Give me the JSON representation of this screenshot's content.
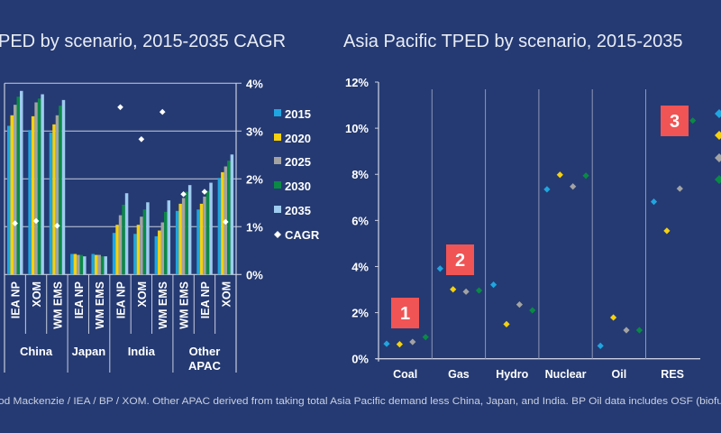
{
  "colors": {
    "background": "#253a72",
    "2015": "#1fa6e0",
    "2020": "#f5d10f",
    "2025": "#a3a3a3",
    "2030": "#0a8a45",
    "2035": "#9ecbef",
    "cagr": "#ffffff",
    "callout": "#f05454",
    "grid": "#c8cde0"
  },
  "footer": "od Mackenzie / IEA / BP / XOM. Other APAC derived from taking total Asia Pacific demand less China, Japan, and India. BP Oil data includes OSF (biofu",
  "chart_data": [
    {
      "type": "bar",
      "title": "PED by scenario, 2015-2035 CAGR",
      "y2_ticks": [
        "0%",
        "1%",
        "2%",
        "3%",
        "4%"
      ],
      "y2lim": [
        0,
        4
      ],
      "grid": true,
      "legend_placement": "right",
      "legend": [
        "2015",
        "2020",
        "2025",
        "2030",
        "2035",
        "CAGR"
      ],
      "groups": [
        {
          "label": "China",
          "scenarios": [
            "IEA NP",
            "XOM",
            "WM EMS"
          ]
        },
        {
          "label": "Japan",
          "scenarios": [
            "IEA NP",
            "WM EMS"
          ]
        },
        {
          "label": "India",
          "scenarios": [
            "IEA NP",
            "XOM",
            "WM EMS"
          ]
        },
        {
          "label": "Other APAC",
          "scenarios": [
            "WM EMS",
            "IEA NP",
            "XOM"
          ]
        }
      ],
      "categories": [
        "IEA NP",
        "XOM",
        "WM EMS",
        "IEA NP",
        "WM EMS",
        "IEA NP",
        "XOM",
        "WM EMS",
        "WM EMS",
        "IEA NP",
        "XOM"
      ],
      "series": [
        {
          "name": "2015",
          "values": [
            3.11,
            3.02,
            2.97,
            0.43,
            0.43,
            0.87,
            0.85,
            0.8,
            1.33,
            1.36,
            2.02
          ]
        },
        {
          "name": "2020",
          "values": [
            3.33,
            3.31,
            3.14,
            0.43,
            0.41,
            1.04,
            1.04,
            0.92,
            1.48,
            1.48,
            2.14
          ]
        },
        {
          "name": "2025",
          "values": [
            3.55,
            3.6,
            3.33,
            0.41,
            0.41,
            1.24,
            1.21,
            1.09,
            1.6,
            1.63,
            2.26
          ]
        },
        {
          "name": "2030",
          "values": [
            3.72,
            3.68,
            3.53,
            0.41,
            0.38,
            1.46,
            1.36,
            1.31,
            1.73,
            1.75,
            2.38
          ]
        },
        {
          "name": "2035",
          "values": [
            3.84,
            3.77,
            3.65,
            0.38,
            0.38,
            1.7,
            1.51,
            1.55,
            1.87,
            1.92,
            2.51
          ]
        }
      ],
      "cagr": {
        "name": "CAGR",
        "values": [
          1.07,
          1.12,
          1.02,
          null,
          null,
          3.5,
          2.83,
          3.4,
          1.68,
          1.73,
          1.1
        ]
      }
    },
    {
      "type": "scatter",
      "title": "Asia Pacific TPED by scenario, 2015-2035",
      "categories": [
        "Coal",
        "Gas",
        "Hydro",
        "Nuclear",
        "Oil",
        "RES"
      ],
      "y_ticks": [
        "0%",
        "2%",
        "4%",
        "6%",
        "8%",
        "10%",
        "12%"
      ],
      "ylim": [
        0,
        12
      ],
      "series": [
        {
          "color": "#1fa6e0",
          "values": [
            0.65,
            3.91,
            3.21,
            7.35,
            0.56,
            6.81
          ]
        },
        {
          "color": "#f5d10f",
          "values": [
            0.63,
            3.01,
            1.5,
            7.98,
            1.79,
            5.55
          ]
        },
        {
          "color": "#a3a3a3",
          "values": [
            0.73,
            2.91,
            2.35,
            7.47,
            1.24,
            7.38
          ]
        },
        {
          "color": "#0a8a45",
          "values": [
            0.94,
            2.96,
            2.1,
            7.94,
            1.24,
            10.33
          ]
        }
      ],
      "callouts": [
        "1",
        "2",
        "3"
      ]
    }
  ]
}
